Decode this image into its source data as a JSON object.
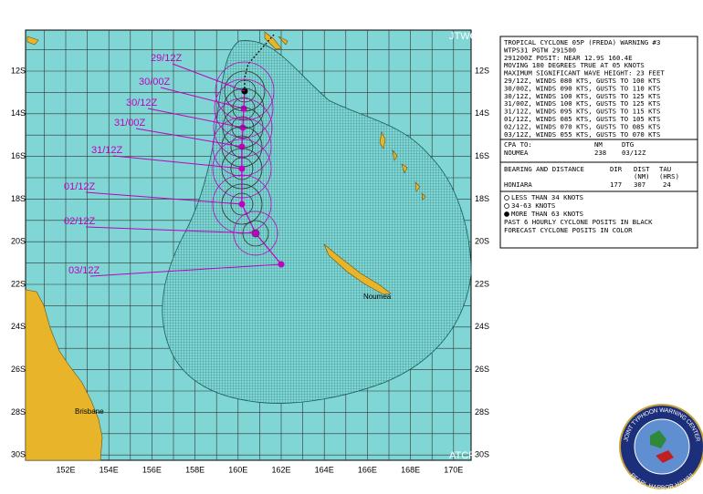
{
  "map": {
    "corner_labels": [
      "JTWC",
      "ATCF"
    ],
    "lat_labels": [
      "12S",
      "14S",
      "16S",
      "18S",
      "20S",
      "22S",
      "24S",
      "26S",
      "28S",
      "30S"
    ],
    "lon_labels": [
      "152E",
      "154E",
      "156E",
      "158E",
      "160E",
      "162E",
      "164E",
      "166E",
      "168E",
      "170E"
    ],
    "places": [
      "Noumea",
      "Brisbane"
    ],
    "forecast_labels": [
      "29/12Z",
      "30/00Z",
      "30/12Z",
      "31/00Z",
      "31/12Z",
      "01/12Z",
      "02/12Z",
      "03/12Z"
    ]
  },
  "warning": {
    "lines": [
      "TROPICAL CYCLONE 05P (FREDA) WARNING #3",
      "WTPS31 PGTW 291500",
      "291200Z POSIT: NEAR 12.9S 160.4E",
      "MOVING 180 DEGREES TRUE AT 05 KNOTS",
      "MAXIMUM SIGNIFICANT WAVE HEIGHT: 23 FEET",
      "29/12Z, WINDS 080 KTS, GUSTS TO 100 KTS",
      "30/00Z, WINDS 090 KTS, GUSTS TO 110 KTS",
      "30/12Z, WINDS 100 KTS, GUSTS TO 125 KTS",
      "31/00Z, WINDS 100 KTS, GUSTS TO 125 KTS",
      "31/12Z, WINDS 095 KTS, GUSTS TO 115 KTS",
      "01/12Z, WINDS 085 KTS, GUSTS TO 105 KTS",
      "02/12Z, WINDS 070 KTS, GUSTS TO 085 KTS",
      "03/12Z, WINDS 055 KTS, GUSTS TO 070 KTS"
    ],
    "cpa": {
      "header": [
        "CPA TO:",
        "NM",
        "DTG"
      ],
      "row": [
        "NOUMEA",
        "238",
        "03/12Z"
      ]
    },
    "bearing": {
      "header": [
        "BEARING AND DISTANCE",
        "DIR",
        "DIST",
        "TAU"
      ],
      "units": [
        "(NM)",
        "(HRS)"
      ],
      "row": [
        "HONIARA",
        "177",
        "307",
        "24"
      ]
    },
    "legend": [
      "LESS THAN 34 KNOTS",
      "34-63 KNOTS",
      "MORE THAN 63 KNOTS",
      "PAST 6 HOURLY CYCLONE POSITS IN BLACK",
      "FORECAST CYCLONE POSITS IN COLOR"
    ]
  },
  "seal": {
    "top": "JOINT TYPHOON WARNING CENTER",
    "bottom": "PEARL HARBOR HAWAII"
  }
}
